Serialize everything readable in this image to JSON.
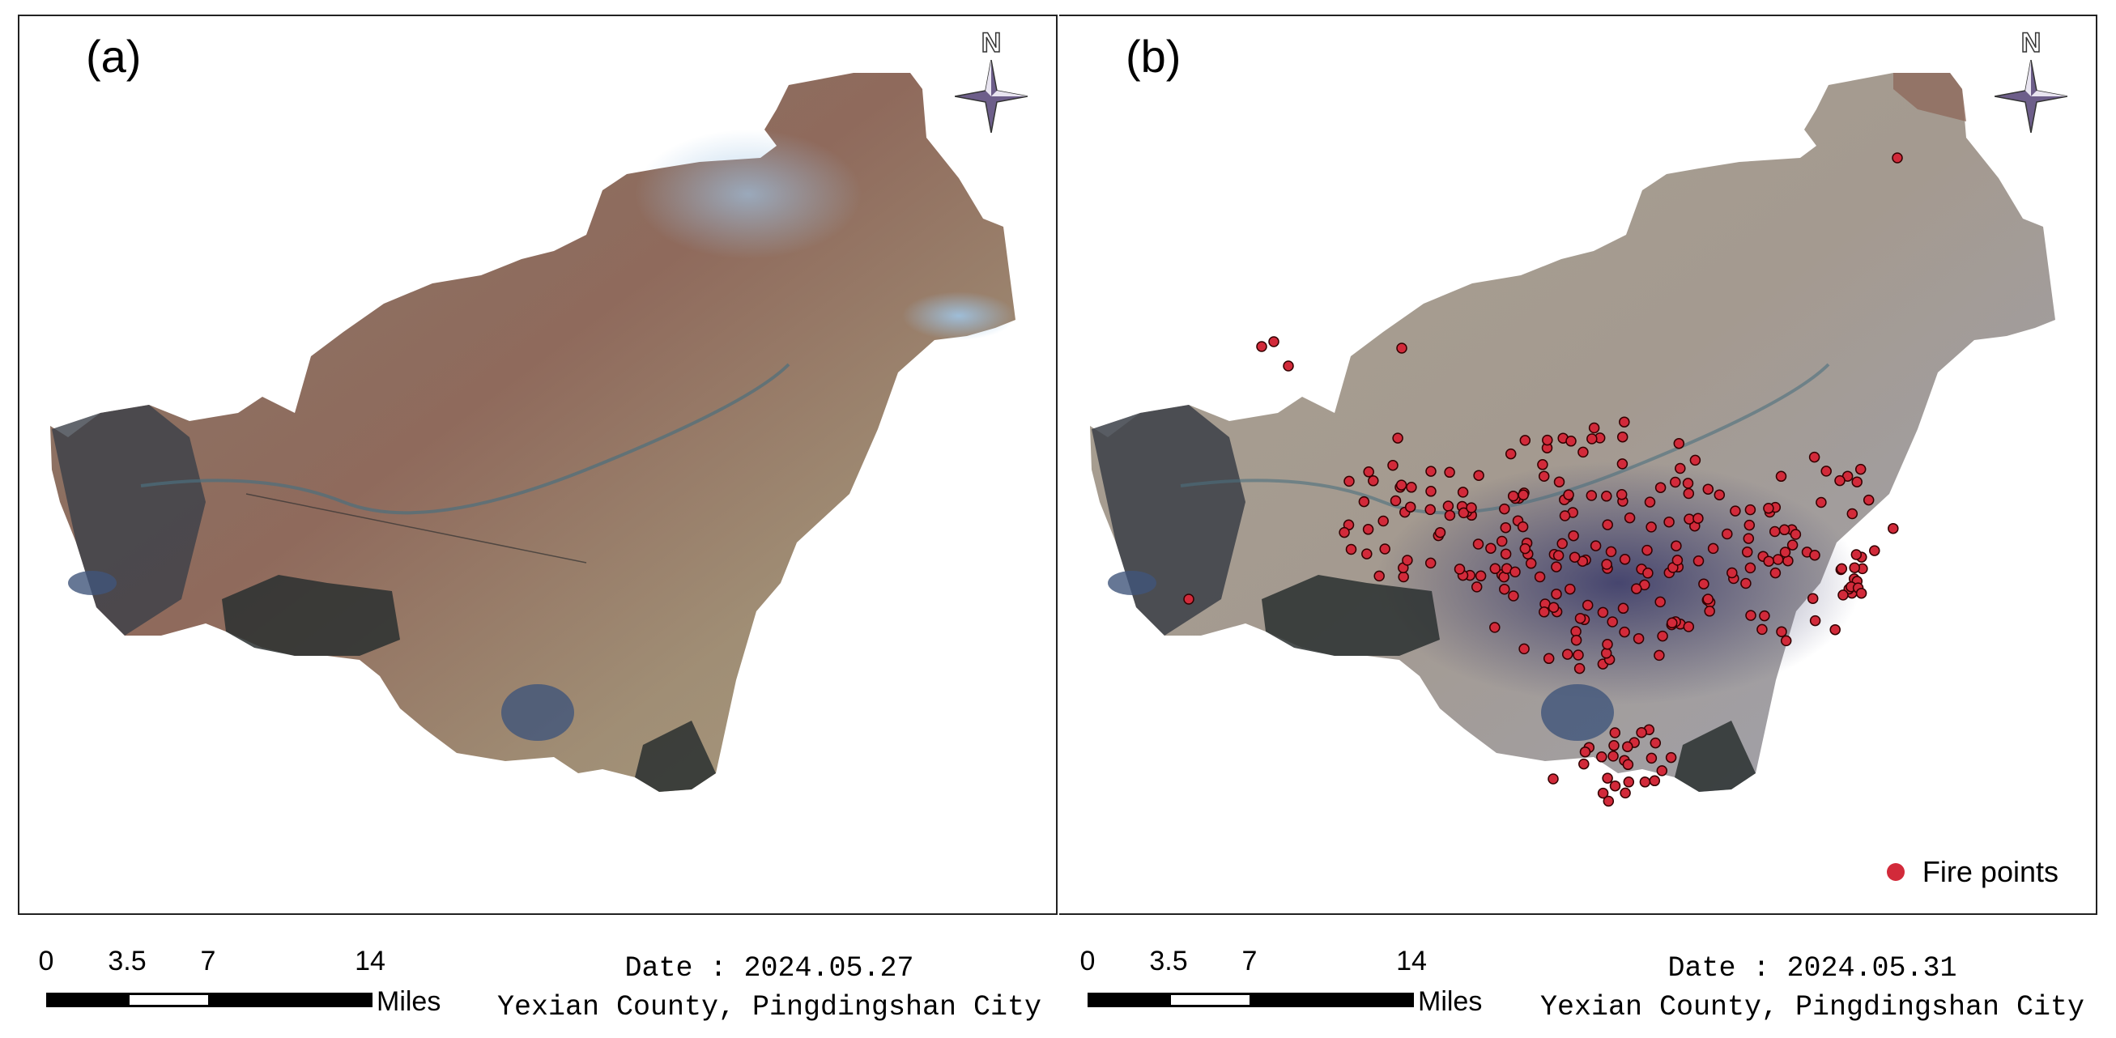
{
  "panels": [
    {
      "label": "(a)",
      "north_label": "N"
    },
    {
      "label": "(b)",
      "north_label": "N"
    }
  ],
  "legend": {
    "label": "Fire points",
    "color": "#d22a3a"
  },
  "scalebars": [
    {
      "ticks": [
        "0",
        "3.5",
        "7",
        "14"
      ],
      "units": "Miles"
    },
    {
      "ticks": [
        "0",
        "3.5",
        "7",
        "14"
      ],
      "units": "Miles"
    }
  ],
  "captions": [
    {
      "date": "Date : 2024.05.27",
      "place": "Yexian County, Pingdingshan City"
    },
    {
      "date": "Date : 2024.05.31",
      "place": "Yexian County, Pingdingshan City"
    }
  ],
  "colors": {
    "fire_point": "#d22a3a",
    "water": "#40557a",
    "mountain": "#2a3030"
  }
}
